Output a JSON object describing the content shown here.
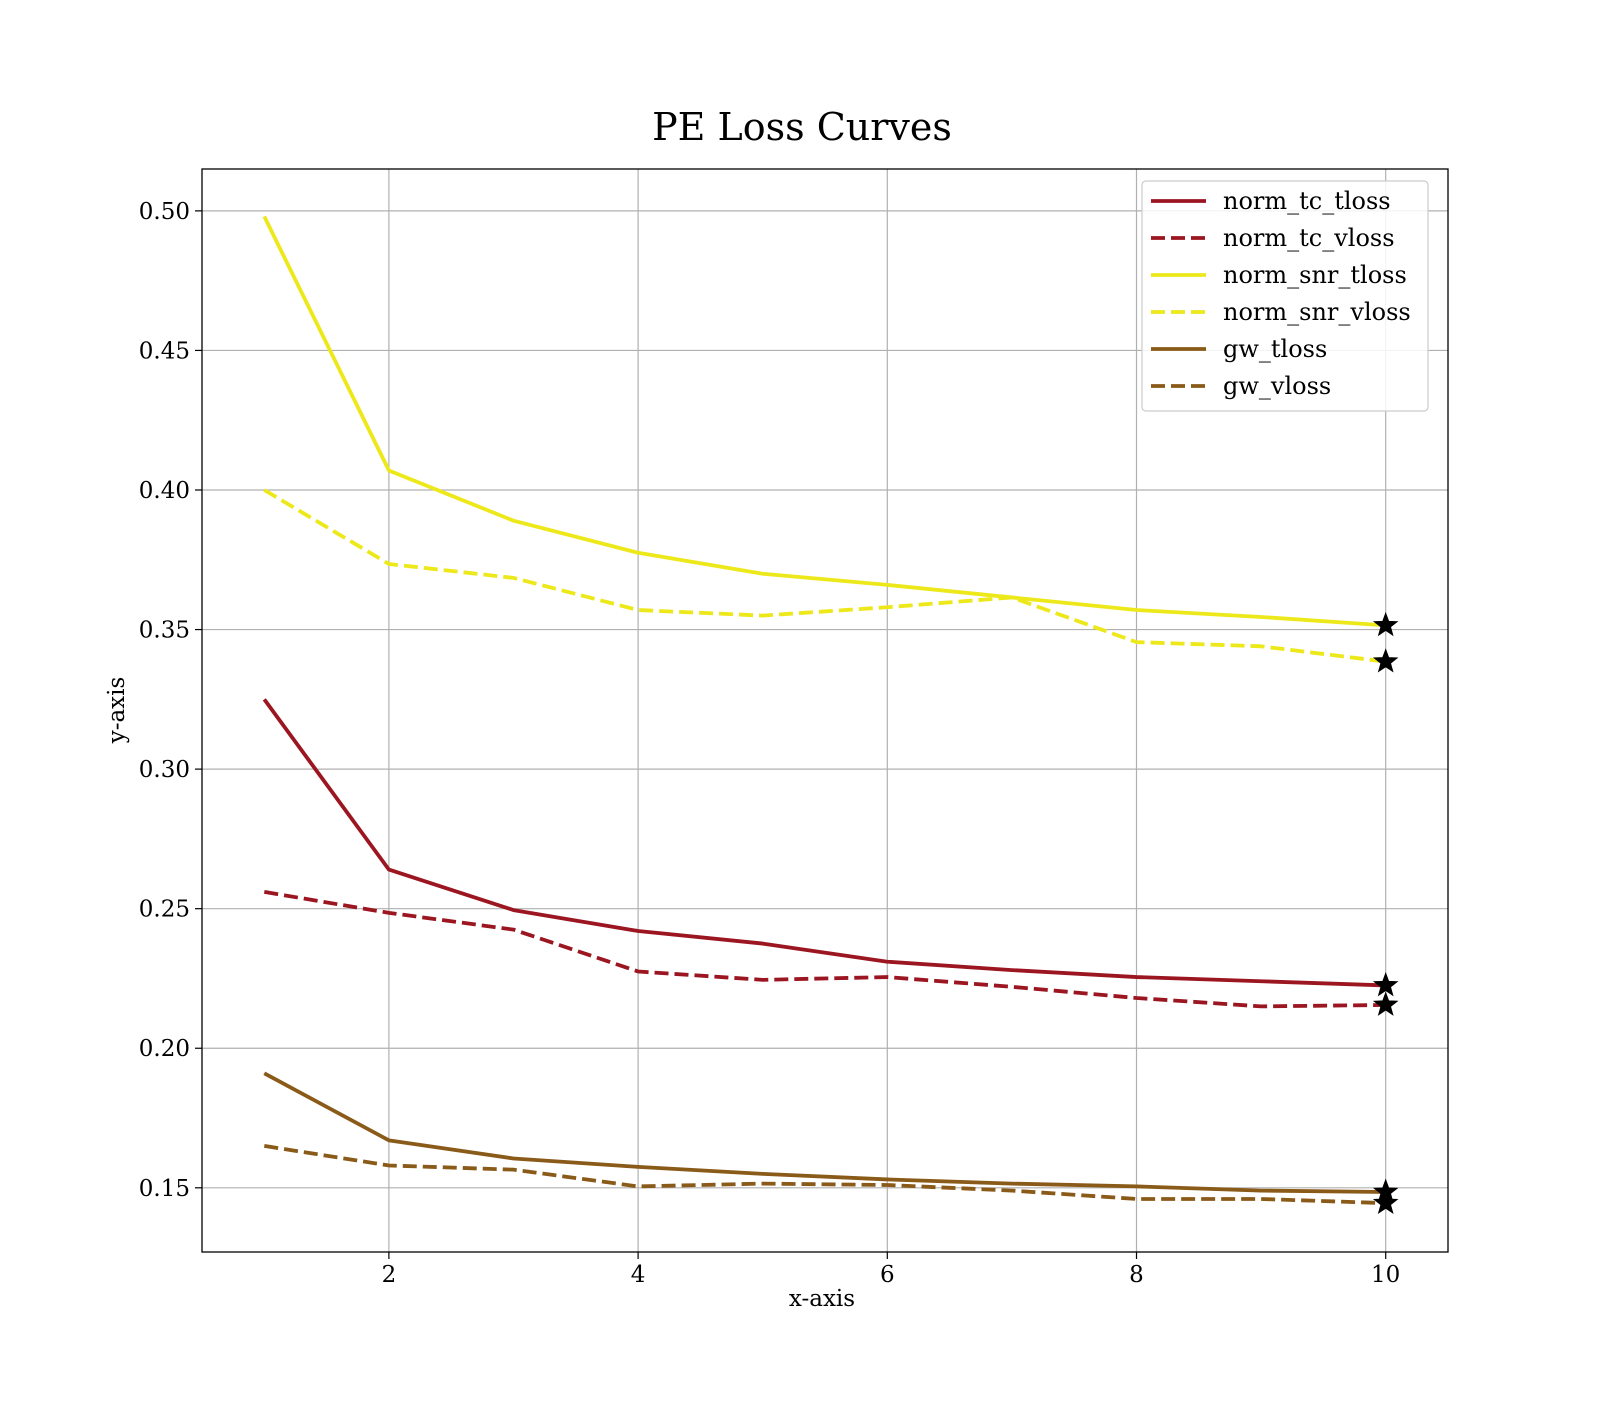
{
  "chart_data": {
    "type": "line",
    "title": "PE Loss Curves",
    "xlabel": "x-axis",
    "ylabel": "y-axis",
    "xlim": [
      0.5,
      10.5
    ],
    "ylim": [
      0.127,
      0.515
    ],
    "xticks": [
      2,
      4,
      6,
      8,
      10
    ],
    "yticks": [
      0.15,
      0.2,
      0.25,
      0.3,
      0.35,
      0.4,
      0.45,
      0.5
    ],
    "grid": true,
    "legend_position": "top-right",
    "x": [
      1,
      2,
      3,
      4,
      5,
      6,
      7,
      8,
      9,
      10
    ],
    "series": [
      {
        "name": "norm_tc_tloss",
        "color": "#9b1620",
        "dash": "solid",
        "values": [
          0.325,
          0.264,
          0.2495,
          0.242,
          0.2375,
          0.231,
          0.228,
          0.2255,
          0.224,
          0.2225
        ]
      },
      {
        "name": "norm_tc_vloss",
        "color": "#9b1620",
        "dash": "dashed",
        "values": [
          0.256,
          0.2485,
          0.2425,
          0.2275,
          0.2245,
          0.2255,
          0.222,
          0.218,
          0.215,
          0.2155
        ]
      },
      {
        "name": "norm_snr_tloss",
        "color": "#ede81a",
        "dash": "solid",
        "values": [
          0.498,
          0.407,
          0.389,
          0.3775,
          0.37,
          0.366,
          0.3615,
          0.357,
          0.3545,
          0.3515
        ]
      },
      {
        "name": "norm_snr_vloss",
        "color": "#ede81a",
        "dash": "dashed",
        "values": [
          0.4,
          0.3735,
          0.3685,
          0.357,
          0.355,
          0.358,
          0.3615,
          0.3455,
          0.344,
          0.3385
        ]
      },
      {
        "name": "gw_tloss",
        "color": "#8a5a19",
        "dash": "solid",
        "values": [
          0.191,
          0.167,
          0.1605,
          0.1575,
          0.155,
          0.153,
          0.1515,
          0.1505,
          0.149,
          0.1485
        ]
      },
      {
        "name": "gw_vloss",
        "color": "#8a5a19",
        "dash": "dashed",
        "values": [
          0.165,
          0.158,
          0.1565,
          0.1505,
          0.1515,
          0.151,
          0.149,
          0.146,
          0.146,
          0.1445
        ]
      }
    ],
    "marker_at_last_point": "black-star"
  }
}
